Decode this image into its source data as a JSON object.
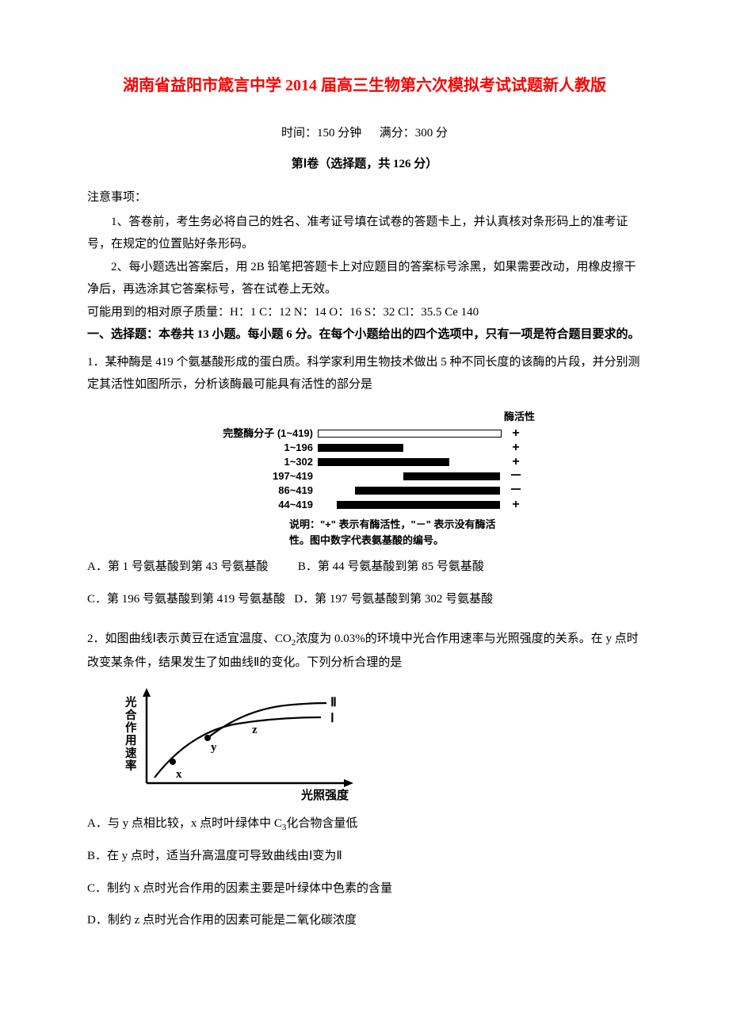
{
  "title": "湖南省益阳市箴言中学 2014 届高三生物第六次模拟考试试题新人教版",
  "meta": {
    "time_label": "时间：150 分钟",
    "score_label": "满分：300 分"
  },
  "section1_title": "第Ⅰ卷（选择题，共 126 分）",
  "notice_head": "注意事项：",
  "notice_items": [
    "1、答卷前，考生务必将自己的姓名、准考证号填在试卷的答题卡上，并认真核对条形码上的准考证号，在规定的位置贴好条形码。",
    "2、每小题选出答案后，用 2B 铅笔把答题卡上对应题目的答案标号涂黑，如果需要改动，用橡皮擦干净后，再选涂其它答案标号，答在试卷上无效。"
  ],
  "atomic_mass": "可能用到的相对原子质量：H：1  C：12  N：14  O：16  S：32 Cl：35.5  Ce 140",
  "instruction_head": "一、选择题：本卷共 13 小题。每小题 6 分。在每个小题给出的四个选项中，只有一项是符合题目要求的。",
  "q1": {
    "stem": "1．某种酶是 419 个氨基酸形成的蛋白质。科学家利用生物技术做出 5 种不同长度的该酶的片段，并分别测定其活性如图所示，分析该酶最可能具有活性的部分是",
    "diagram": {
      "total": 419,
      "header_activity": "酶活性",
      "row_full_label": "完整酶分子 (1~419)",
      "rows": [
        {
          "label": "完整酶分子 (1~419)",
          "from": 1,
          "to": 419,
          "activity": "+",
          "outline": true
        },
        {
          "label": "1~196",
          "from": 1,
          "to": 196,
          "activity": "+",
          "outline": false
        },
        {
          "label": "1~302",
          "from": 1,
          "to": 302,
          "activity": "+",
          "outline": false
        },
        {
          "label": "197~419",
          "from": 197,
          "to": 419,
          "activity": "－",
          "outline": false
        },
        {
          "label": "86~419",
          "from": 86,
          "to": 419,
          "activity": "－",
          "outline": false
        },
        {
          "label": "44~419",
          "from": 44,
          "to": 419,
          "activity": "+",
          "outline": false
        }
      ],
      "note": "说明：\"+\" 表示有酶活性，\"－\" 表示没有酶活性。图中数字代表氨基酸的编号。"
    },
    "options": {
      "A": "A．第 1 号氨基酸到第 43 号氨基酸",
      "B": "B．第 44 号氨基酸到第 85 号氨基酸",
      "C": "C．第 196 号氨基酸到第 419 号氨基酸",
      "D": "D．第 197 号氨基酸到第 302 号氨基酸"
    }
  },
  "q2": {
    "stem_prefix": "2．如图曲线Ⅰ表示黄豆在适宜温度、CO",
    "stem_sub": "2",
    "stem_suffix": "浓度为 0.03%的环境中光合作用速率与光照强度的关系。在 y 点时改变某条件，结果发生了如曲线Ⅱ的变化。下列分析合理的是",
    "diagram": {
      "y_label": "光合作用速率",
      "x_label": "光照强度",
      "points": [
        "x",
        "y",
        "z"
      ],
      "curves": [
        "Ⅰ",
        "Ⅱ"
      ],
      "axis_color": "#000000",
      "curve_width": 2
    },
    "options": {
      "A_prefix": "A．与 y 点相比较，x 点时叶绿体中 C",
      "A_sub": "3",
      "A_suffix": "化合物含量低",
      "B": "B．在 y 点时，适当升高温度可导致曲线由Ⅰ变为Ⅱ",
      "C": "C．制约 x 点时光合作用的因素主要是叶绿体中色素的含量",
      "D": "D．制约 z 点时光合作用的因素可能是二氧化碳浓度"
    }
  }
}
